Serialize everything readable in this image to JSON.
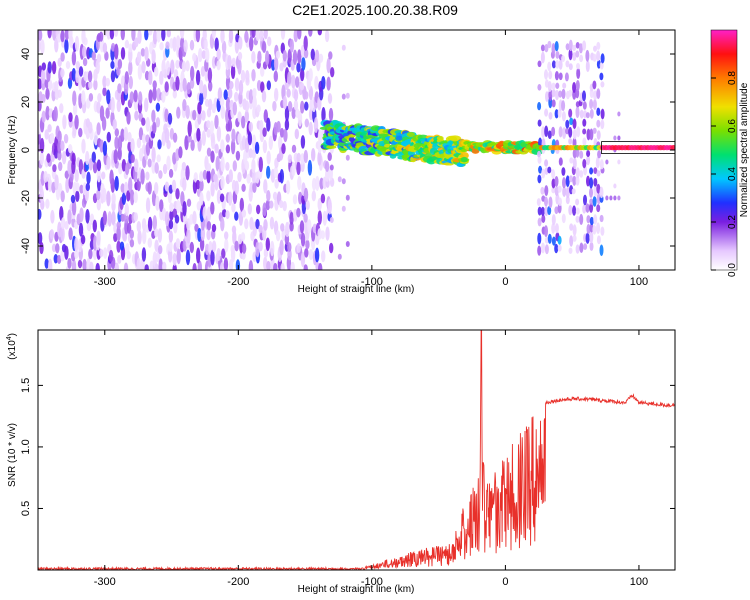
{
  "title": "C2E1.2025.100.20.38.R09",
  "colors": {
    "signal": "#ff1a1a",
    "snr_line": "#e8302a",
    "noise": "#7a1fe0",
    "background": "#ffffff"
  },
  "chart_data": [
    {
      "type": "heatmap",
      "name": "spectrogram",
      "xlabel": "Height of straight line (km)",
      "ylabel": "Frequency (Hz)",
      "xlim": [
        -350,
        127
      ],
      "ylim": [
        -50,
        50
      ],
      "xticks": [
        -300,
        -200,
        -100,
        0,
        100
      ],
      "yticks": [
        -40,
        -20,
        0,
        20,
        40
      ],
      "grid": false,
      "colorbar": {
        "label": "Normalized spectral amplitude",
        "range": [
          0.0,
          1.0
        ],
        "ticks": [
          0.0,
          0.2,
          0.4,
          0.6,
          0.8
        ],
        "colormap": "rainbow (white-purple-blue-cyan-green-yellow-red-magenta)"
      },
      "regions": [
        {
          "x": [
            -350,
            -130
          ],
          "f": [
            -50,
            50
          ],
          "description": "broadband noise, amplitude 0.05-0.3"
        },
        {
          "x": [
            -130,
            -30
          ],
          "f_center": [
            6,
            -6
          ],
          "bandwidth_hz": 12,
          "amplitude": [
            0.3,
            0.6
          ]
        },
        {
          "x": [
            -30,
            25
          ],
          "f_center": 1,
          "bandwidth_hz": 4,
          "amplitude": [
            0.5,
            0.9
          ]
        },
        {
          "x": [
            25,
            72
          ],
          "f": [
            -40,
            40
          ],
          "description": "noise burst with strong line at 1 Hz"
        },
        {
          "x": [
            72,
            127
          ],
          "f_center": 1,
          "bandwidth_hz": 3,
          "amplitude": [
            0.9,
            1.0
          ]
        }
      ]
    },
    {
      "type": "line",
      "name": "snr",
      "xlabel": "Height of straight line (km)",
      "ylabel": "SNR (10 * v/v)",
      "yscale_label": "(x10",
      "yscale_exponent": "4",
      "xlim": [
        -350,
        127
      ],
      "ylim": [
        0,
        1.95
      ],
      "xticks": [
        -300,
        -200,
        -100,
        0,
        100
      ],
      "yticks": [
        0.5,
        1.0,
        1.5
      ],
      "grid": false,
      "series": [
        {
          "x": [
            -350,
            -300,
            -250,
            -200,
            -150,
            -120,
            -110,
            -100,
            -90,
            -80,
            -70,
            -60,
            -50,
            -40,
            -35,
            -30,
            -25,
            -20,
            -18,
            -15,
            -10,
            0,
            10,
            20,
            25,
            28,
            30,
            40,
            50,
            60,
            70,
            80,
            90,
            95,
            100,
            110,
            120,
            127
          ],
          "y": [
            0.01,
            0.01,
            0.01,
            0.01,
            0.01,
            0.01,
            0.02,
            0.04,
            0.08,
            0.12,
            0.15,
            0.18,
            0.2,
            0.25,
            0.4,
            0.6,
            0.7,
            0.8,
            1.9,
            0.75,
            0.8,
            0.95,
            1.1,
            1.25,
            1.35,
            1.43,
            1.36,
            1.38,
            1.39,
            1.39,
            1.38,
            1.37,
            1.36,
            1.42,
            1.36,
            1.35,
            1.34,
            1.34
          ]
        }
      ]
    }
  ]
}
